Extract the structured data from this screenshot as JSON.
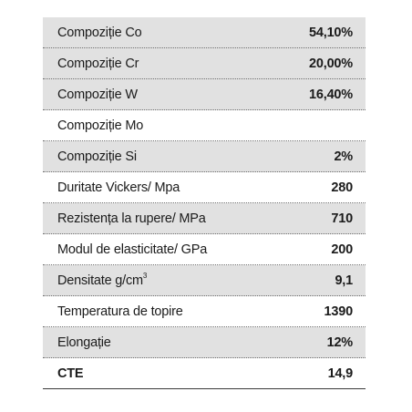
{
  "table": {
    "rows": [
      {
        "label": "Compoziție Co",
        "value": "54,10%",
        "shaded": true
      },
      {
        "label": "Compoziție Cr",
        "value": "20,00%",
        "shaded": true
      },
      {
        "label": "Compoziție W",
        "value": "16,40%",
        "shaded": true
      },
      {
        "label": "Compoziție Mo",
        "value": "",
        "shaded": false
      },
      {
        "label": "Compoziție Si",
        "value": "2%",
        "shaded": true
      },
      {
        "label": "Duritate Vickers/ Mpa",
        "value": "280",
        "shaded": false
      },
      {
        "label": "Rezistența la rupere/ MPa",
        "value": "710",
        "shaded": true
      },
      {
        "label": "Modul de elasticitate/ GPa",
        "value": "200",
        "shaded": false
      },
      {
        "label": "Densitate g/cm",
        "label_sup": "3",
        "value": "9,1",
        "shaded": true
      },
      {
        "label": "Temperatura de topire",
        "value": "1390",
        "shaded": false
      },
      {
        "label": "Elongație",
        "value": "12%",
        "shaded": true
      },
      {
        "label": "CTE",
        "value": "14,9",
        "shaded": false
      }
    ]
  }
}
